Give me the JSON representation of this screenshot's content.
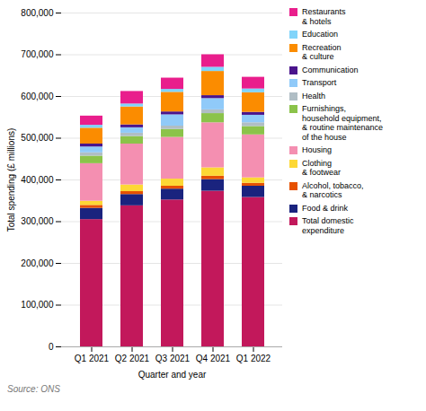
{
  "chart_data": {
    "type": "bar",
    "stacked": true,
    "xlabel": "Quarter and year",
    "ylabel": "Total spending (£ millions)",
    "categories": [
      "Q1 2021",
      "Q2 2021",
      "Q3 2021",
      "Q4 2021",
      "Q1 2022"
    ],
    "series": [
      {
        "name": "Total domestic\nexpenditure",
        "color": "#c2185b",
        "values": [
          305000,
          338000,
          352000,
          373000,
          358000
        ]
      },
      {
        "name": "Food & drink",
        "color": "#1a237e",
        "values": [
          27000,
          27000,
          26000,
          28000,
          27000
        ]
      },
      {
        "name": "Alcohol, tobacco,\n& narcotics",
        "color": "#e65100",
        "values": [
          7000,
          7000,
          7000,
          8000,
          7000
        ]
      },
      {
        "name": "Clothing\n& footwear",
        "color": "#fdd835",
        "values": [
          10000,
          16000,
          17000,
          20000,
          13000
        ]
      },
      {
        "name": "Housing",
        "color": "#f48fb1",
        "values": [
          90000,
          98000,
          100000,
          108000,
          103000
        ]
      },
      {
        "name": "Furnishings,\nhousehold equipment,\n& routine maintenance\nof the house",
        "color": "#8bc34a",
        "values": [
          18000,
          18000,
          19000,
          22000,
          20000
        ]
      },
      {
        "name": "Health",
        "color": "#b0bec5",
        "values": [
          8000,
          8000,
          8000,
          9000,
          9000
        ]
      },
      {
        "name": "Transport",
        "color": "#90caf9",
        "values": [
          14000,
          13000,
          27000,
          27000,
          18000
        ]
      },
      {
        "name": "Communication",
        "color": "#4a148c",
        "values": [
          7000,
          7000,
          7000,
          7000,
          7000
        ]
      },
      {
        "name": "Recreation\n& culture",
        "color": "#fb8c00",
        "values": [
          38000,
          43000,
          47000,
          58000,
          47000
        ]
      },
      {
        "name": "Education",
        "color": "#81d4fa",
        "values": [
          7000,
          7000,
          7000,
          10000,
          9000
        ]
      },
      {
        "name": "Restaurants\n& hotels",
        "color": "#e91e8c",
        "values": [
          22000,
          30000,
          27000,
          30000,
          28000
        ]
      }
    ],
    "ylim": [
      0,
      800000
    ],
    "yticks": [
      0,
      {
        "value": 100000,
        "label": "100,000"
      },
      {
        "value": 200000,
        "label": "200,000"
      },
      {
        "value": 300000,
        "label": "300,000"
      },
      {
        "value": 400000,
        "label": "400,000"
      },
      {
        "value": 500000,
        "label": "500,000"
      },
      {
        "value": 600000,
        "label": "600,000"
      },
      {
        "value": 700000,
        "label": "700,000"
      },
      {
        "value": 800000,
        "label": "800,000"
      }
    ],
    "grid": true,
    "legend": "right",
    "caption": "Source: ONS"
  }
}
